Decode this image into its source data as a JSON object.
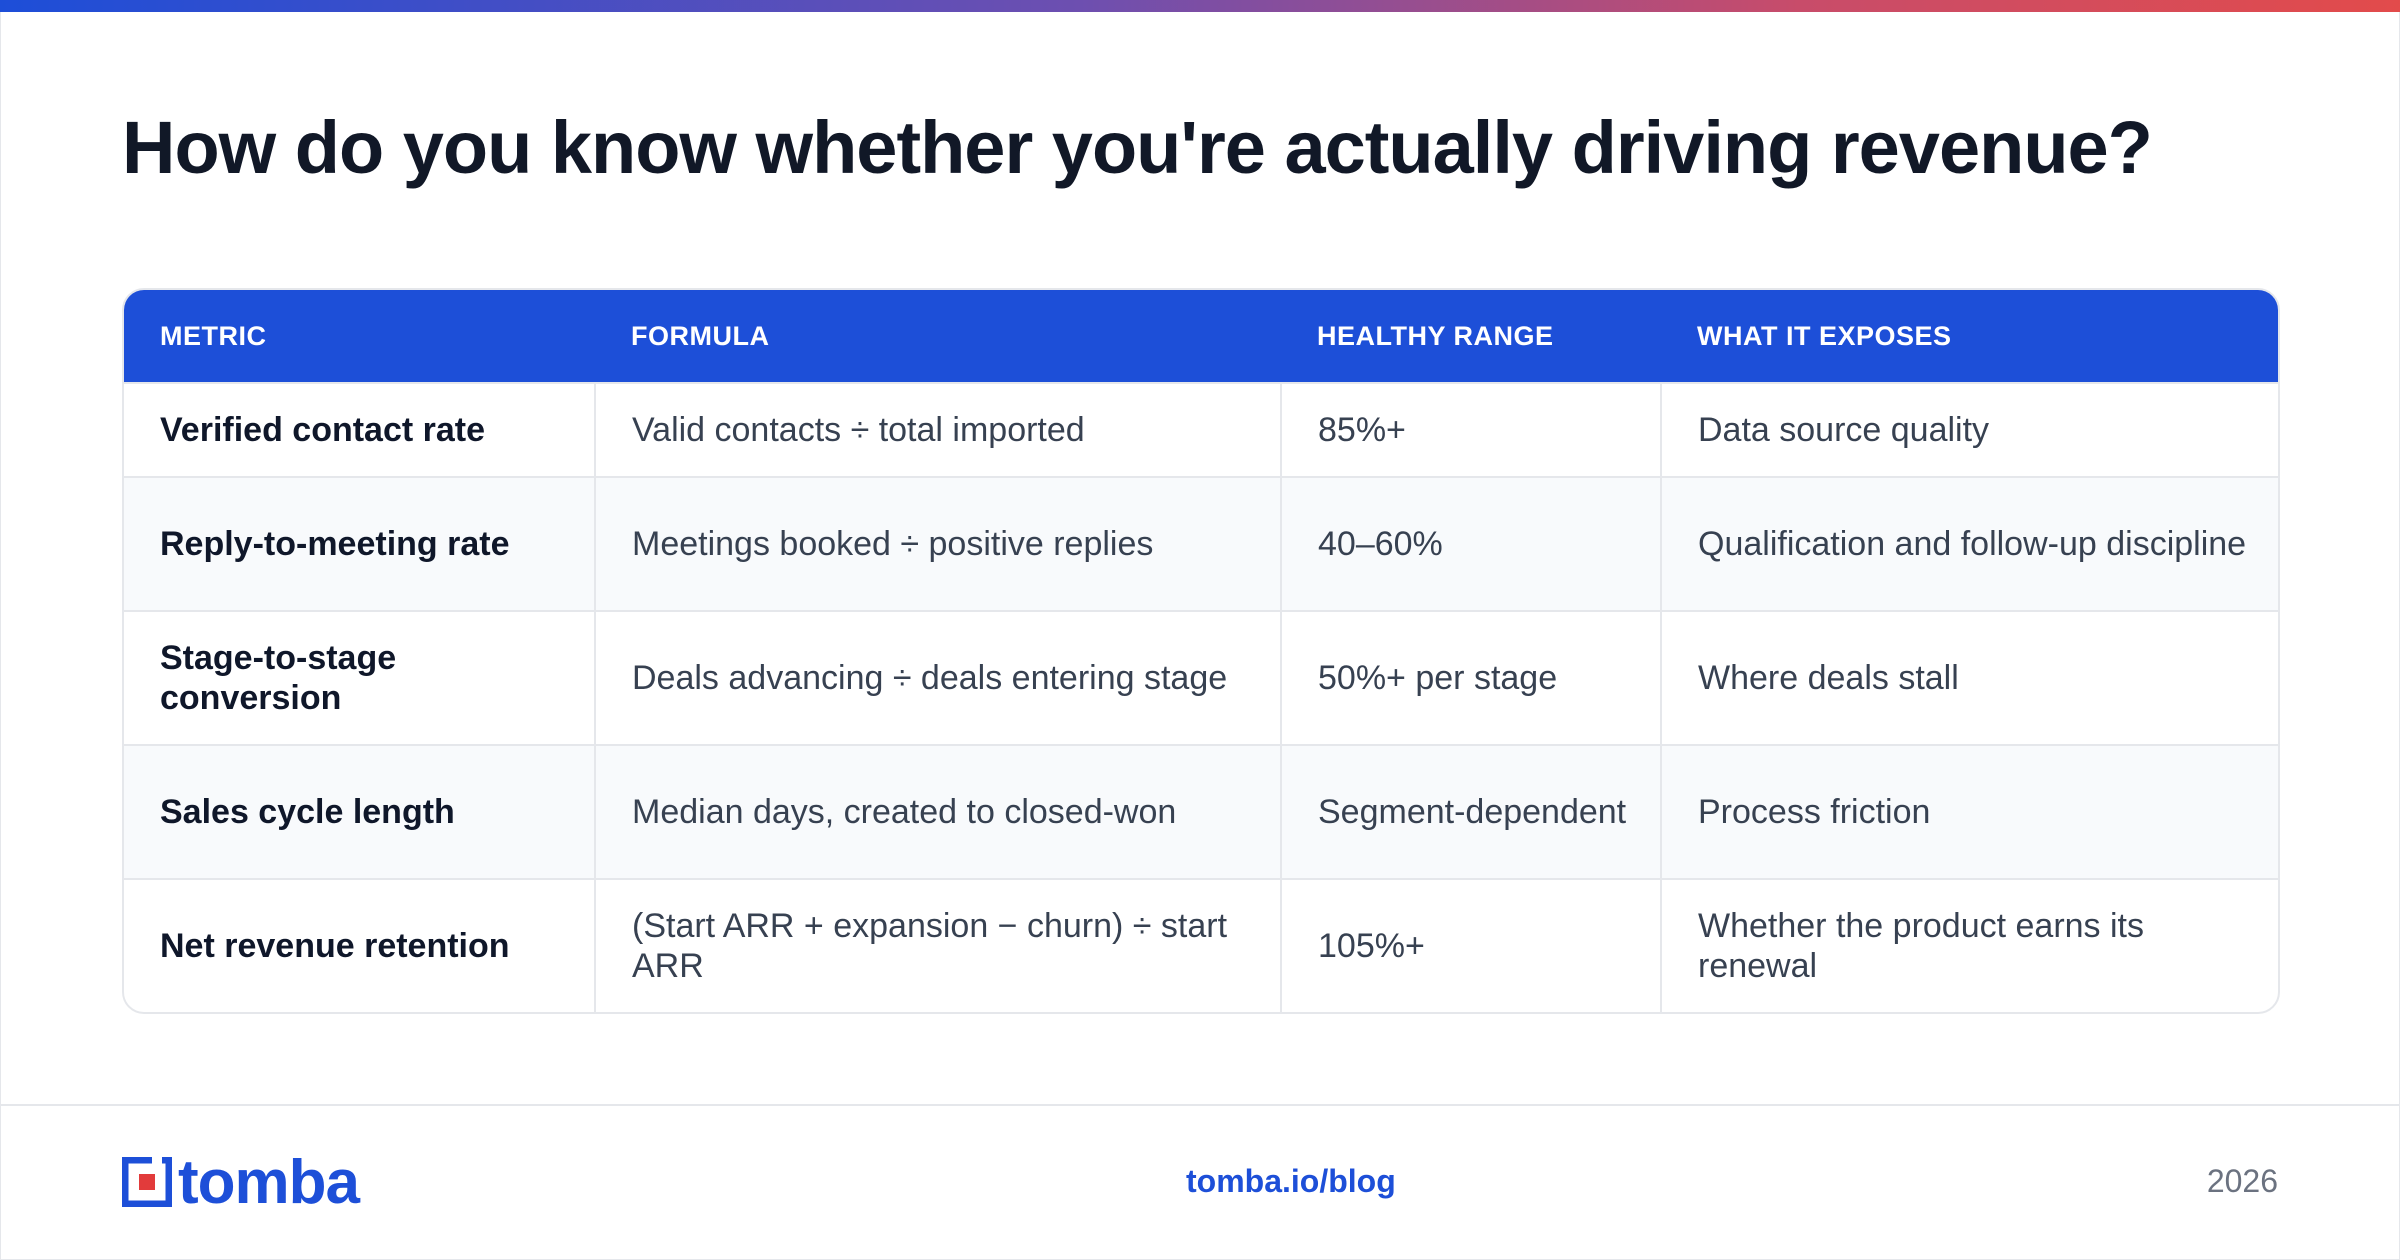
{
  "title": "How do you know whether you're actually driving revenue?",
  "table": {
    "headers": [
      "METRIC",
      "FORMULA",
      "HEALTHY RANGE",
      "WHAT IT EXPOSES"
    ],
    "rows": [
      [
        "Verified contact rate",
        "Valid contacts ÷ total imported",
        "85%+",
        "Data source quality"
      ],
      [
        "Reply-to-meeting rate",
        "Meetings booked ÷ positive replies",
        "40–60%",
        "Qualification and follow-up discipline"
      ],
      [
        "Stage-to-stage conversion",
        "Deals advancing ÷ deals entering stage",
        "50%+ per stage",
        "Where deals stall"
      ],
      [
        "Sales cycle length",
        "Median days, created to closed-won",
        "Segment-dependent",
        "Process friction"
      ],
      [
        "Net revenue retention",
        "(Start ARR + expansion − churn) ÷ start ARR",
        "105%+",
        "Whether the product earns its renewal"
      ]
    ]
  },
  "footer": {
    "logo_text": "tomba",
    "link": "tomba.io/blog",
    "year": "2026"
  },
  "colors": {
    "accent": "#1d4fd8",
    "logo_red": "#e23b3b",
    "text_dark": "#111827"
  }
}
